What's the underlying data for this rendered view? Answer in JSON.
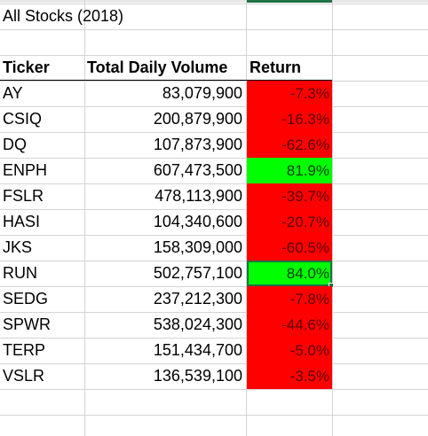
{
  "title": "All Stocks (2018)",
  "headers": {
    "ticker": "Ticker",
    "volume": "Total Daily Volume",
    "return": "Return"
  },
  "colors": {
    "negative": "#ff0000",
    "positive": "#00ff00",
    "selection": "#1e7145"
  },
  "rows": [
    {
      "ticker": "AY",
      "volume": "83,079,900",
      "return": "-7.3%",
      "sign": "neg"
    },
    {
      "ticker": "CSIQ",
      "volume": "200,879,900",
      "return": "-16.3%",
      "sign": "neg"
    },
    {
      "ticker": "DQ",
      "volume": "107,873,900",
      "return": "-62.6%",
      "sign": "neg"
    },
    {
      "ticker": "ENPH",
      "volume": "607,473,500",
      "return": "81.9%",
      "sign": "pos"
    },
    {
      "ticker": "FSLR",
      "volume": "478,113,900",
      "return": "-39.7%",
      "sign": "neg"
    },
    {
      "ticker": "HASI",
      "volume": "104,340,600",
      "return": "-20.7%",
      "sign": "neg"
    },
    {
      "ticker": "JKS",
      "volume": "158,309,000",
      "return": "-60.5%",
      "sign": "neg"
    },
    {
      "ticker": "RUN",
      "volume": "502,757,100",
      "return": "84.0%",
      "sign": "pos",
      "selected": true
    },
    {
      "ticker": "SEDG",
      "volume": "237,212,300",
      "return": "-7.8%",
      "sign": "neg"
    },
    {
      "ticker": "SPWR",
      "volume": "538,024,300",
      "return": "-44.6%",
      "sign": "neg"
    },
    {
      "ticker": "TERP",
      "volume": "151,434,700",
      "return": "-5.0%",
      "sign": "neg"
    },
    {
      "ticker": "VSLR",
      "volume": "136,539,100",
      "return": "-3.5%",
      "sign": "neg"
    }
  ]
}
